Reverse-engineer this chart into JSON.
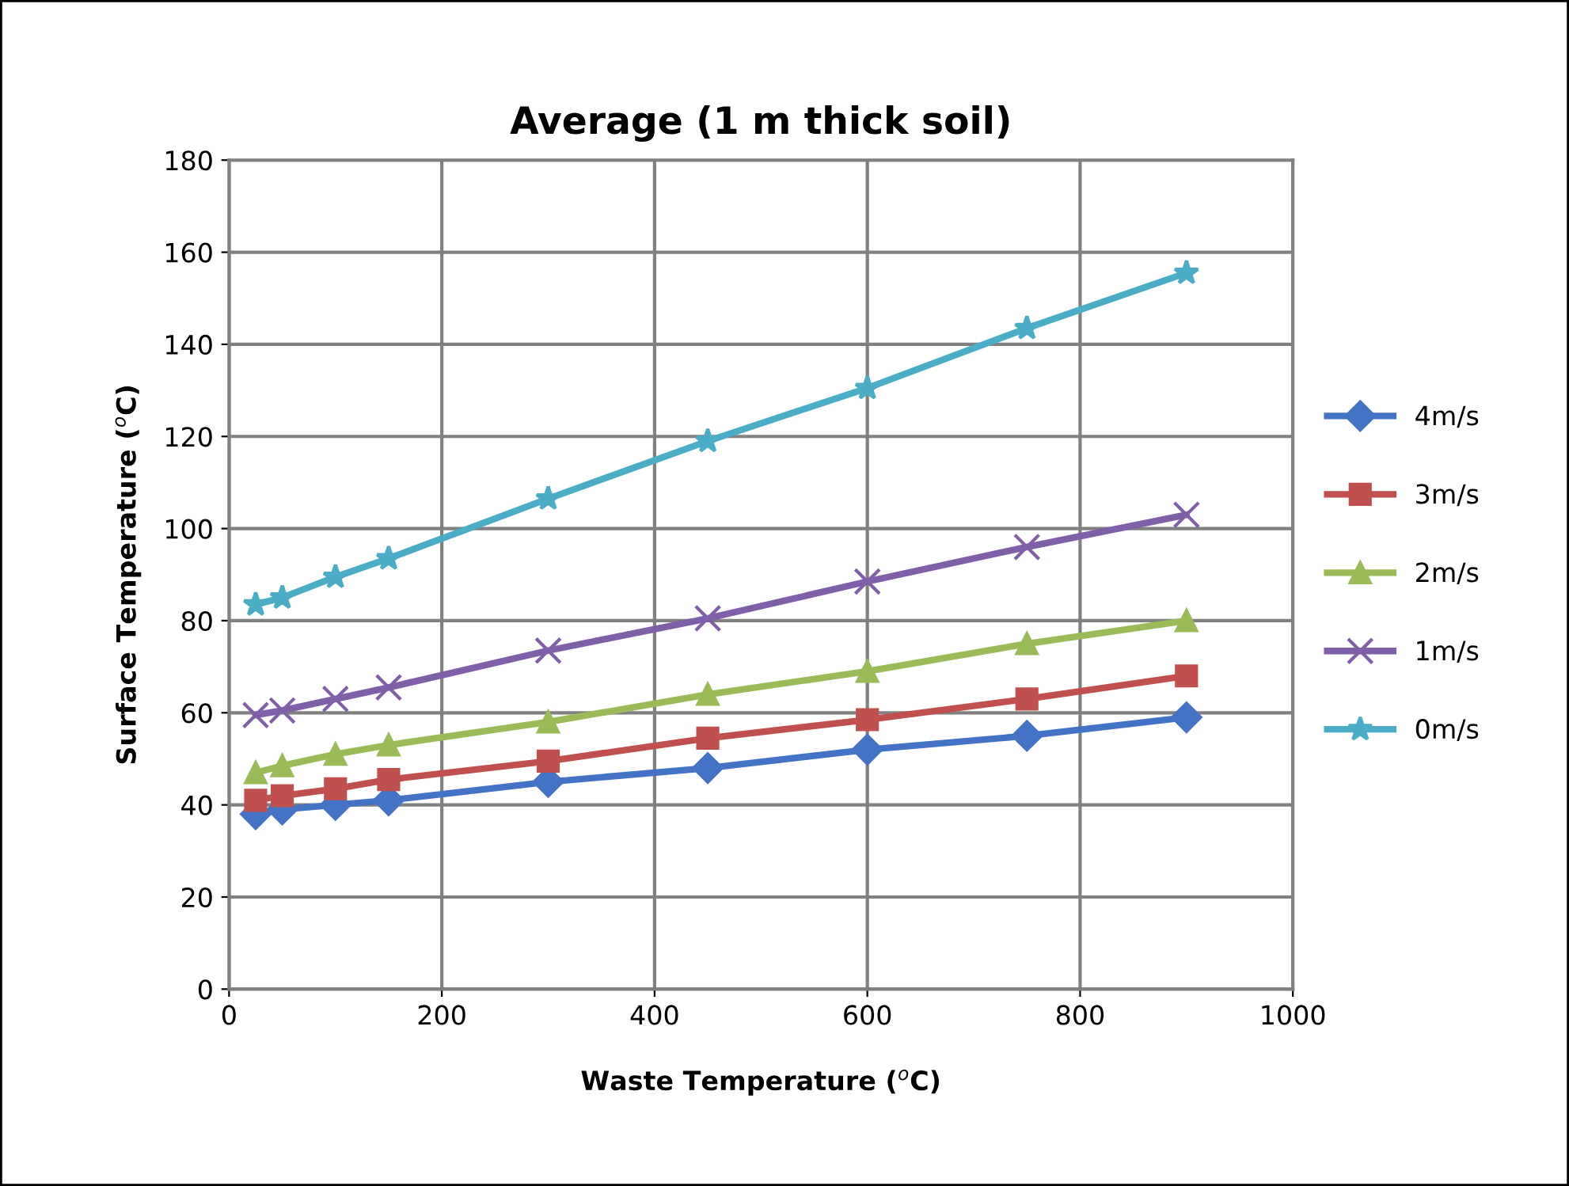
{
  "chart_data": {
    "type": "line",
    "title": "Average (1 m thick soil)",
    "xlabel": "Waste Temperature ($^{o}$C)",
    "ylabel": "Surface Temperature ($^{o}$C)",
    "x": [
      25,
      50,
      100,
      150,
      300,
      450,
      600,
      750,
      900
    ],
    "series": [
      {
        "name": "4m/s",
        "color": "#4472c4",
        "marker": "diamond",
        "values": [
          38,
          39,
          40,
          41,
          45,
          48,
          52,
          55,
          59
        ]
      },
      {
        "name": "3m/s",
        "color": "#c0504d",
        "marker": "square",
        "values": [
          41,
          42,
          43.5,
          45.5,
          49.5,
          54.5,
          58.5,
          63,
          68
        ]
      },
      {
        "name": "2m/s",
        "color": "#9bbb59",
        "marker": "triangle",
        "values": [
          47,
          48.5,
          51,
          53,
          58,
          64,
          69,
          75,
          80
        ]
      },
      {
        "name": "1m/s",
        "color": "#7f5fa8",
        "marker": "cross",
        "values": [
          59.5,
          60.5,
          63,
          65.5,
          73.5,
          80.5,
          88.5,
          96,
          103
        ]
      },
      {
        "name": "0m/s",
        "color": "#4bacc6",
        "marker": "star",
        "values": [
          83.5,
          85,
          89.5,
          93.5,
          106.5,
          119,
          130.5,
          143.5,
          155.5
        ]
      }
    ],
    "xlim": [
      0,
      1000
    ],
    "xticks": [
      0,
      200,
      400,
      600,
      800,
      1000
    ],
    "ylim": [
      0,
      180
    ],
    "yticks": [
      0,
      20,
      40,
      60,
      80,
      100,
      120,
      140,
      160,
      180
    ],
    "grid": true,
    "legend": "right",
    "line_style": "solid"
  }
}
